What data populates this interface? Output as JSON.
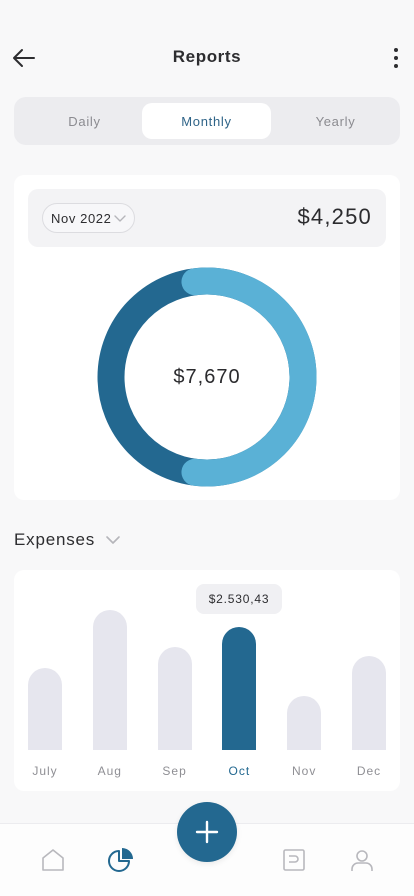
{
  "header": {
    "title": "Reports",
    "back_icon": "arrow-left-icon",
    "more_icon": "more-vertical-icon"
  },
  "period_tabs": {
    "items": [
      "Daily",
      "Monthly",
      "Yearly"
    ],
    "selected": "Monthly"
  },
  "summary": {
    "month": "Nov 2022",
    "total": "$4,250",
    "donut_center": "$7,670",
    "donut": {
      "light_fraction": 0.54,
      "dark_fraction": 0.46,
      "light_color": "#5ab1d6",
      "dark_color": "#236890"
    }
  },
  "expenses": {
    "title": "Expenses",
    "tooltip": "$2.530,43",
    "selected": "Oct"
  },
  "chart_data": {
    "type": "bar",
    "categories": [
      "July",
      "Aug",
      "Sep",
      "Oct",
      "Nov",
      "Dec"
    ],
    "values": [
      82,
      140,
      103,
      123,
      54,
      94
    ],
    "highlight": "Oct",
    "ylim": [
      0,
      140
    ],
    "grid": false
  },
  "tabbar": {
    "items": [
      "home-icon",
      "reports-pie-icon",
      "add-icon",
      "wallet-icon",
      "profile-icon"
    ],
    "active": "reports-pie-icon"
  },
  "colors": {
    "accent": "#236890",
    "accent_light": "#5ab1d6",
    "bar_inactive": "#e6e6ee",
    "background": "#f8f8f9"
  }
}
